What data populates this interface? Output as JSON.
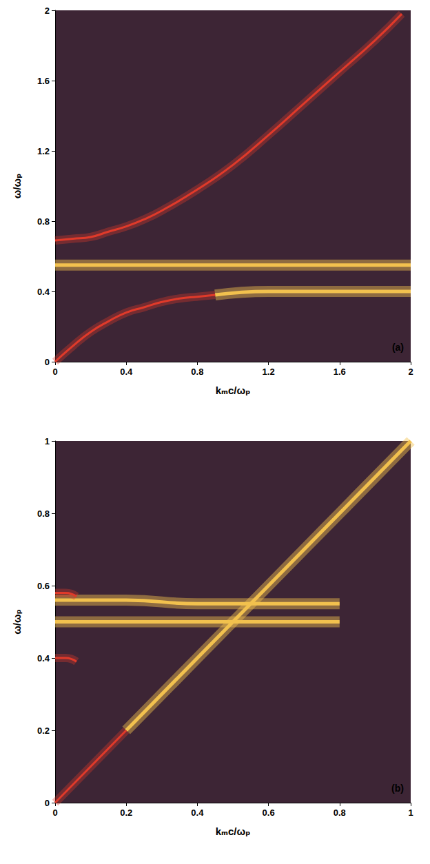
{
  "chart_data": [
    {
      "type": "line",
      "x_label": "kₘc/ωₚ",
      "y_label": "ω/ωₚ",
      "annotation": "(a)",
      "xlim": [
        0,
        2
      ],
      "ylim": [
        0,
        2
      ],
      "xticks": [
        0,
        0.4,
        0.8,
        1.2,
        1.6,
        2
      ],
      "yticks": [
        0,
        0.4,
        0.8,
        1.2,
        1.6,
        2
      ],
      "grid": false,
      "series": [
        {
          "color": "#f2c14e",
          "line_style": "solid",
          "x": [
            0,
            0.4,
            0.8,
            1.2,
            1.6,
            2.0
          ],
          "values": [
            0.55,
            0.55,
            0.55,
            0.55,
            0.55,
            0.55
          ]
        },
        {
          "color": "#f2c14e",
          "line_style": "solid",
          "x": [
            0.9,
            1.2,
            1.6,
            2.0
          ],
          "values": [
            0.38,
            0.4,
            0.4,
            0.4
          ]
        },
        {
          "color": "#e03a2a",
          "line_style": "solid",
          "x": [
            0,
            0.1,
            0.2,
            0.3,
            0.4,
            0.5,
            0.6,
            0.8,
            1.0,
            1.2,
            1.4,
            1.6,
            1.8,
            1.95
          ],
          "values": [
            0.69,
            0.7,
            0.71,
            0.74,
            0.77,
            0.81,
            0.86,
            0.98,
            1.12,
            1.29,
            1.47,
            1.65,
            1.83,
            1.98
          ]
        },
        {
          "color": "#e03a2a",
          "line_style": "solid",
          "x": [
            0,
            0.1,
            0.2,
            0.3,
            0.4,
            0.5,
            0.6,
            0.7,
            0.8,
            0.9
          ],
          "values": [
            0,
            0.09,
            0.17,
            0.23,
            0.28,
            0.31,
            0.34,
            0.36,
            0.37,
            0.38
          ]
        }
      ]
    },
    {
      "type": "line",
      "x_label": "kₘc/ωₚ",
      "y_label": "ω/ωₚ",
      "annotation": "(b)",
      "xlim": [
        0,
        1
      ],
      "ylim": [
        0,
        1
      ],
      "xticks": [
        0,
        0.2,
        0.4,
        0.6,
        0.8,
        1
      ],
      "yticks": [
        0,
        0.2,
        0.4,
        0.6,
        0.8,
        1
      ],
      "grid": false,
      "series": [
        {
          "color": "#f2c14e",
          "line_style": "solid",
          "x": [
            0,
            0.2,
            0.4,
            0.6,
            0.8
          ],
          "values": [
            0.5,
            0.5,
            0.5,
            0.5,
            0.5
          ]
        },
        {
          "color": "#f2c14e",
          "line_style": "solid",
          "x": [
            0,
            0.2,
            0.4,
            0.6,
            0.8
          ],
          "values": [
            0.56,
            0.56,
            0.55,
            0.55,
            0.55
          ]
        },
        {
          "color": "#f2c14e",
          "line_style": "solid",
          "x": [
            0.2,
            0.4,
            0.6,
            0.8,
            1.0
          ],
          "values": [
            0.2,
            0.4,
            0.6,
            0.8,
            1.0
          ]
        },
        {
          "color": "#e03a2a",
          "line_style": "solid",
          "x": [
            0,
            0.1,
            0.2
          ],
          "values": [
            0,
            0.1,
            0.2
          ]
        },
        {
          "color": "#e03a2a",
          "line_style": "solid",
          "x": [
            0,
            0.03,
            0.06
          ],
          "values": [
            0.4,
            0.4,
            0.39
          ]
        },
        {
          "color": "#e03a2a",
          "line_style": "solid",
          "x": [
            0,
            0.03,
            0.06
          ],
          "values": [
            0.58,
            0.58,
            0.57
          ]
        }
      ]
    }
  ]
}
